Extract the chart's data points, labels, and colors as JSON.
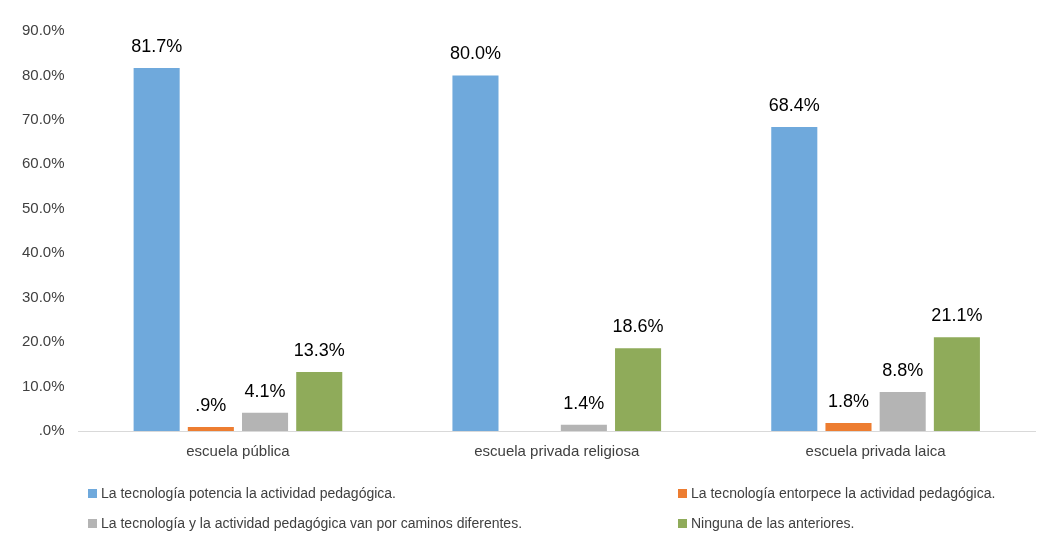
{
  "chart_data": {
    "type": "bar",
    "categories": [
      "escuela pública",
      "escuela privada religiosa",
      "escuela privada laica"
    ],
    "series": [
      {
        "name": "La tecnología potencia la actividad pedagógica.",
        "color": "#6fa9dc",
        "values": [
          81.7,
          80.0,
          68.4
        ],
        "value_labels": [
          "81.7%",
          "80.0%",
          "68.4%"
        ]
      },
      {
        "name": "La tecnología entorpece la actividad pedagógica.",
        "color": "#ed7d31",
        "values": [
          0.9,
          null,
          1.8
        ],
        "value_labels": [
          ".9%",
          null,
          "1.8%"
        ]
      },
      {
        "name": "La tecnología y la actividad pedagógica van por caminos diferentes.",
        "color": "#b4b4b4",
        "values": [
          4.1,
          1.4,
          8.8
        ],
        "value_labels": [
          "4.1%",
          "1.4%",
          "8.8%"
        ]
      },
      {
        "name": "Ninguna de las anteriores.",
        "color": "#8fab5a",
        "values": [
          13.3,
          18.6,
          21.1
        ],
        "value_labels": [
          "13.3%",
          "18.6%",
          "21.1%"
        ]
      }
    ],
    "ylim": [
      0,
      90
    ],
    "yticks": [
      {
        "value": 0,
        "label": ".0%"
      },
      {
        "value": 10,
        "label": "10.0%"
      },
      {
        "value": 20,
        "label": "20.0%"
      },
      {
        "value": 30,
        "label": "30.0%"
      },
      {
        "value": 40,
        "label": "40.0%"
      },
      {
        "value": 50,
        "label": "50.0%"
      },
      {
        "value": 60,
        "label": "60.0%"
      },
      {
        "value": 70,
        "label": "70.0%"
      },
      {
        "value": 80,
        "label": "80.0%"
      },
      {
        "value": 90,
        "label": "90.0%"
      }
    ],
    "grid": false,
    "legend": "bottom"
  }
}
